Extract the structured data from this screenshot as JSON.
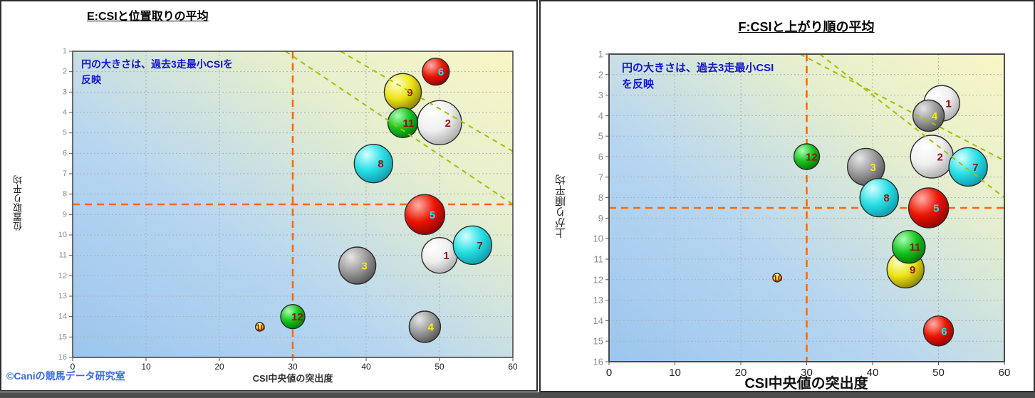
{
  "credit": "©Caniの競馬データ研究室",
  "colors": {
    "background_gradient": [
      [
        "0%",
        "#f9f6c5"
      ],
      [
        "30%",
        "#e4eecf"
      ],
      [
        "62%",
        "#b7d6f0"
      ],
      [
        "100%",
        "#9cc6ee"
      ]
    ],
    "threshold_line": "#ff6a00",
    "diagonal_guide": "#9dc400",
    "grid_line": "#a9b2ba",
    "plot_border": "#4a4a4a",
    "annotation_text": "#1414cc",
    "credit_text": "#3a6add",
    "bubble_palette": {
      "red": [
        "#ffb0a8",
        "#ec1500",
        "#8f0000"
      ],
      "yellow": [
        "#ffffd6",
        "#ece414",
        "#887e00"
      ],
      "green": [
        "#aaffb4",
        "#17c41f",
        "#00770a"
      ],
      "cyan": [
        "#d4ffff",
        "#28dfe4",
        "#0d98a8"
      ],
      "white": [
        "#ffffff",
        "#efefef",
        "#a9a9a9"
      ],
      "gray": [
        "#e6e6e6",
        "#9b9b9b",
        "#535353"
      ]
    }
  },
  "chart_data": [
    {
      "type": "scatter",
      "subtype": "bubble",
      "title": "E:CSIと位置取りの平均",
      "xlabel": "CSI中央値の突出度",
      "ylabel": "位置取り平均",
      "annotation": [
        "円の大きさは、過去3走最小CSIを",
        "反映"
      ],
      "bubble_size_note": "円の大きさは、過去3走最小CSIを反映",
      "xlim": [
        0,
        60
      ],
      "ylim": [
        1,
        16
      ],
      "y_inverted_top_to_bottom": true,
      "x_ticks": [
        0,
        10,
        20,
        30,
        40,
        50,
        60
      ],
      "y_ticks": [
        1,
        2,
        3,
        4,
        5,
        6,
        7,
        8,
        9,
        10,
        11,
        12,
        13,
        14,
        15,
        16
      ],
      "grid": true,
      "threshold_x": 30,
      "threshold_y": 8.5,
      "diagonal_guides": [
        {
          "x1": 36.5,
          "y1": 1,
          "x2": 60,
          "y2": 5.9
        },
        {
          "x1": 29,
          "y1": 1,
          "x2": 60,
          "y2": 8.5
        }
      ],
      "bubbles": [
        {
          "label": "1",
          "x": 50,
          "y": 11,
          "r": 25,
          "color": "white",
          "label_color": "#991111",
          "layer": 0
        },
        {
          "label": "2",
          "x": 50,
          "y": 4.5,
          "r": 31,
          "color": "white",
          "label_color": "#991111",
          "layer": 1
        },
        {
          "label": "3",
          "x": 38.8,
          "y": 11.5,
          "r": 26,
          "color": "gray",
          "label_color": "#f2ef00",
          "layer": 0
        },
        {
          "label": "4",
          "x": 48,
          "y": 14.5,
          "r": 22,
          "color": "gray",
          "label_color": "#f2ef00",
          "layer": 0
        },
        {
          "label": "5",
          "x": 48,
          "y": 9,
          "r": 28,
          "color": "red",
          "label_color": "#17e7f7",
          "layer": 0
        },
        {
          "label": "6",
          "x": 49.5,
          "y": 2,
          "r": 19,
          "color": "red",
          "label_color": "#17e7f7",
          "layer": 0
        },
        {
          "label": "7",
          "x": 54.5,
          "y": 10.5,
          "r": 27,
          "color": "cyan",
          "label_color": "#991111",
          "layer": 1
        },
        {
          "label": "8",
          "x": 41,
          "y": 6.5,
          "r": 27,
          "color": "cyan",
          "label_color": "#991111",
          "layer": 0
        },
        {
          "label": "9",
          "x": 45,
          "y": 3,
          "r": 26,
          "color": "yellow",
          "label_color": "#991111",
          "layer": 0
        },
        {
          "label": "10",
          "x": 25.5,
          "y": 14.5,
          "r": 6,
          "color": "yellow",
          "label_color": "#991111",
          "layer": 0
        },
        {
          "label": "11",
          "x": 45,
          "y": 4.5,
          "r": 21,
          "color": "green",
          "label_color": "#991111",
          "layer": 2
        },
        {
          "label": "12",
          "x": 30,
          "y": 14,
          "r": 17,
          "color": "green",
          "label_color": "#991111",
          "layer": 0
        }
      ]
    },
    {
      "type": "scatter",
      "subtype": "bubble",
      "title": "F:CSIと上がり順の平均",
      "xlabel": "CSI中央値の突出度",
      "ylabel": "上がり順平均",
      "annotation": [
        "円の大きさは、過去3走最小CSI",
        "を反映"
      ],
      "bubble_size_note": "円の大きさは、過去3走最小CSIを反映",
      "xlim": [
        0,
        60
      ],
      "ylim": [
        1,
        16
      ],
      "y_inverted_top_to_bottom": true,
      "x_ticks": [
        0,
        10,
        20,
        30,
        40,
        50,
        60
      ],
      "y_ticks": [
        1,
        2,
        3,
        4,
        5,
        6,
        7,
        8,
        9,
        10,
        11,
        12,
        13,
        14,
        15,
        16
      ],
      "grid": true,
      "threshold_x": 30,
      "threshold_y": 8.5,
      "diagonal_guides": [
        {
          "x1": 29,
          "y1": 1,
          "x2": 60,
          "y2": 6.2
        },
        {
          "x1": 32,
          "y1": 1,
          "x2": 60,
          "y2": 8.0
        }
      ],
      "bubbles": [
        {
          "label": "1",
          "x": 50.5,
          "y": 3.4,
          "r": 25,
          "color": "white",
          "label_color": "#991111",
          "layer": 0
        },
        {
          "label": "2",
          "x": 49,
          "y": 6,
          "r": 30,
          "color": "white",
          "label_color": "#991111",
          "layer": 0
        },
        {
          "label": "3",
          "x": 39,
          "y": 6.5,
          "r": 26,
          "color": "gray",
          "label_color": "#f2ef00",
          "layer": 0
        },
        {
          "label": "4",
          "x": 48.5,
          "y": 4,
          "r": 22,
          "color": "gray",
          "label_color": "#f2ef00",
          "layer": 1
        },
        {
          "label": "5",
          "x": 48.5,
          "y": 8.5,
          "r": 28,
          "color": "red",
          "label_color": "#17e7f7",
          "layer": 0
        },
        {
          "label": "6",
          "x": 50,
          "y": 14.5,
          "r": 21,
          "color": "red",
          "label_color": "#17e7f7",
          "layer": 0
        },
        {
          "label": "7",
          "x": 54.5,
          "y": 6.5,
          "r": 27,
          "color": "cyan",
          "label_color": "#991111",
          "layer": 1
        },
        {
          "label": "8",
          "x": 41,
          "y": 8,
          "r": 27,
          "color": "cyan",
          "label_color": "#991111",
          "layer": 1
        },
        {
          "label": "9",
          "x": 45,
          "y": 11.5,
          "r": 26,
          "color": "yellow",
          "label_color": "#991111",
          "layer": 0
        },
        {
          "label": "10",
          "x": 25.5,
          "y": 11.9,
          "r": 6,
          "color": "yellow",
          "label_color": "#991111",
          "layer": 0
        },
        {
          "label": "11",
          "x": 45.5,
          "y": 10.4,
          "r": 23,
          "color": "green",
          "label_color": "#991111",
          "layer": 1
        },
        {
          "label": "12",
          "x": 30,
          "y": 6,
          "r": 18,
          "color": "green",
          "label_color": "#991111",
          "layer": 0
        }
      ]
    }
  ]
}
